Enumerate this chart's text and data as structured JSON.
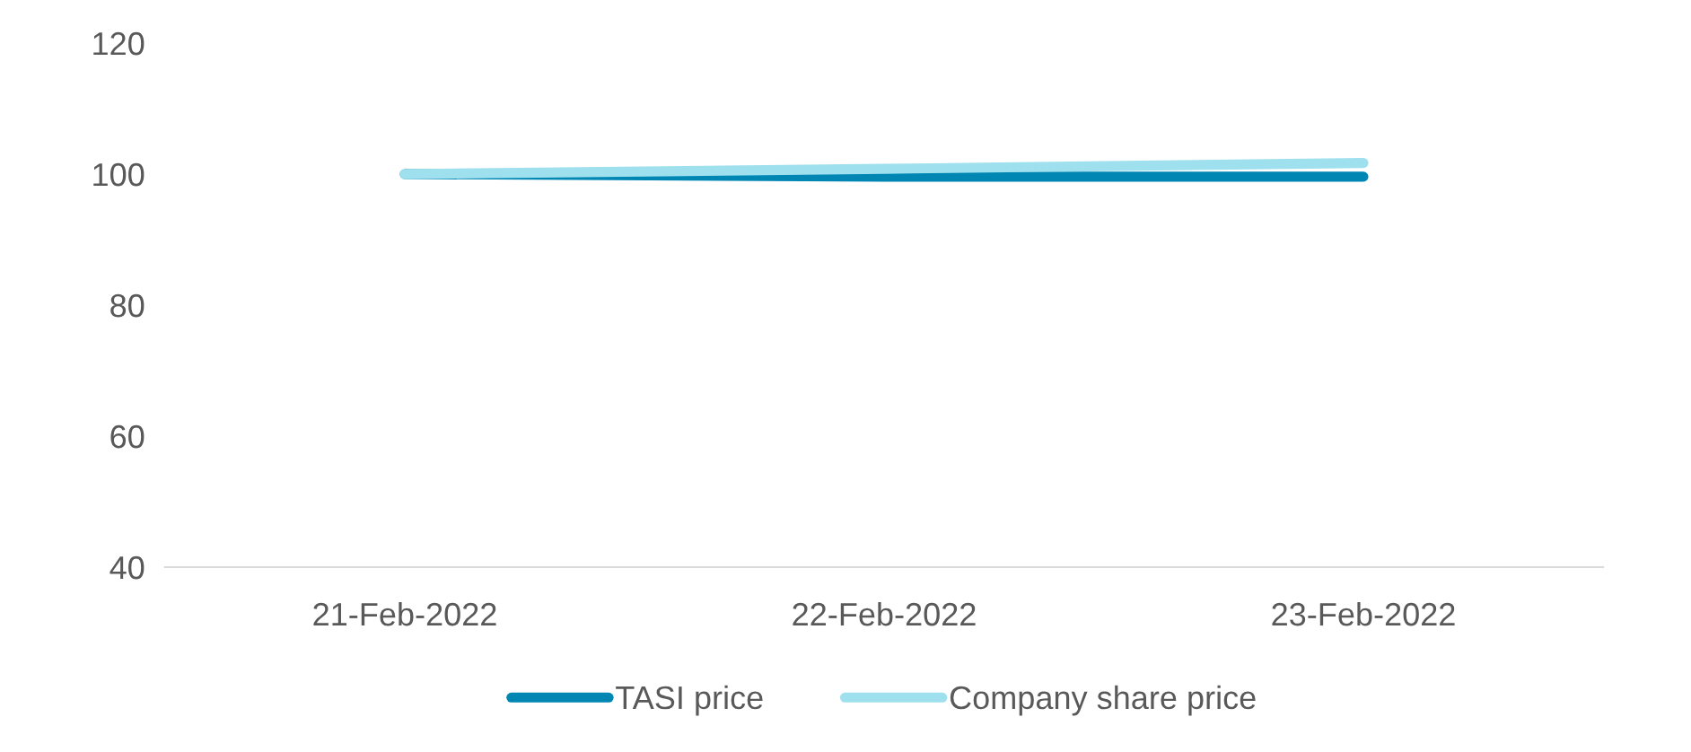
{
  "chart_data": {
    "type": "line",
    "categories": [
      "21-Feb-2022",
      "22-Feb-2022",
      "23-Feb-2022"
    ],
    "series": [
      {
        "name": "TASI price",
        "color": "#0086b3",
        "values": [
          100,
          99.6,
          99.6
        ]
      },
      {
        "name": "Company share price",
        "color": "#9ee0ee",
        "values": [
          100,
          100.8,
          101.7
        ]
      }
    ],
    "ylim": [
      40,
      120
    ],
    "yticks": [
      40,
      60,
      80,
      100,
      120
    ],
    "grid": false,
    "legend": "bottom",
    "marker": "none",
    "line_style": "solid"
  }
}
